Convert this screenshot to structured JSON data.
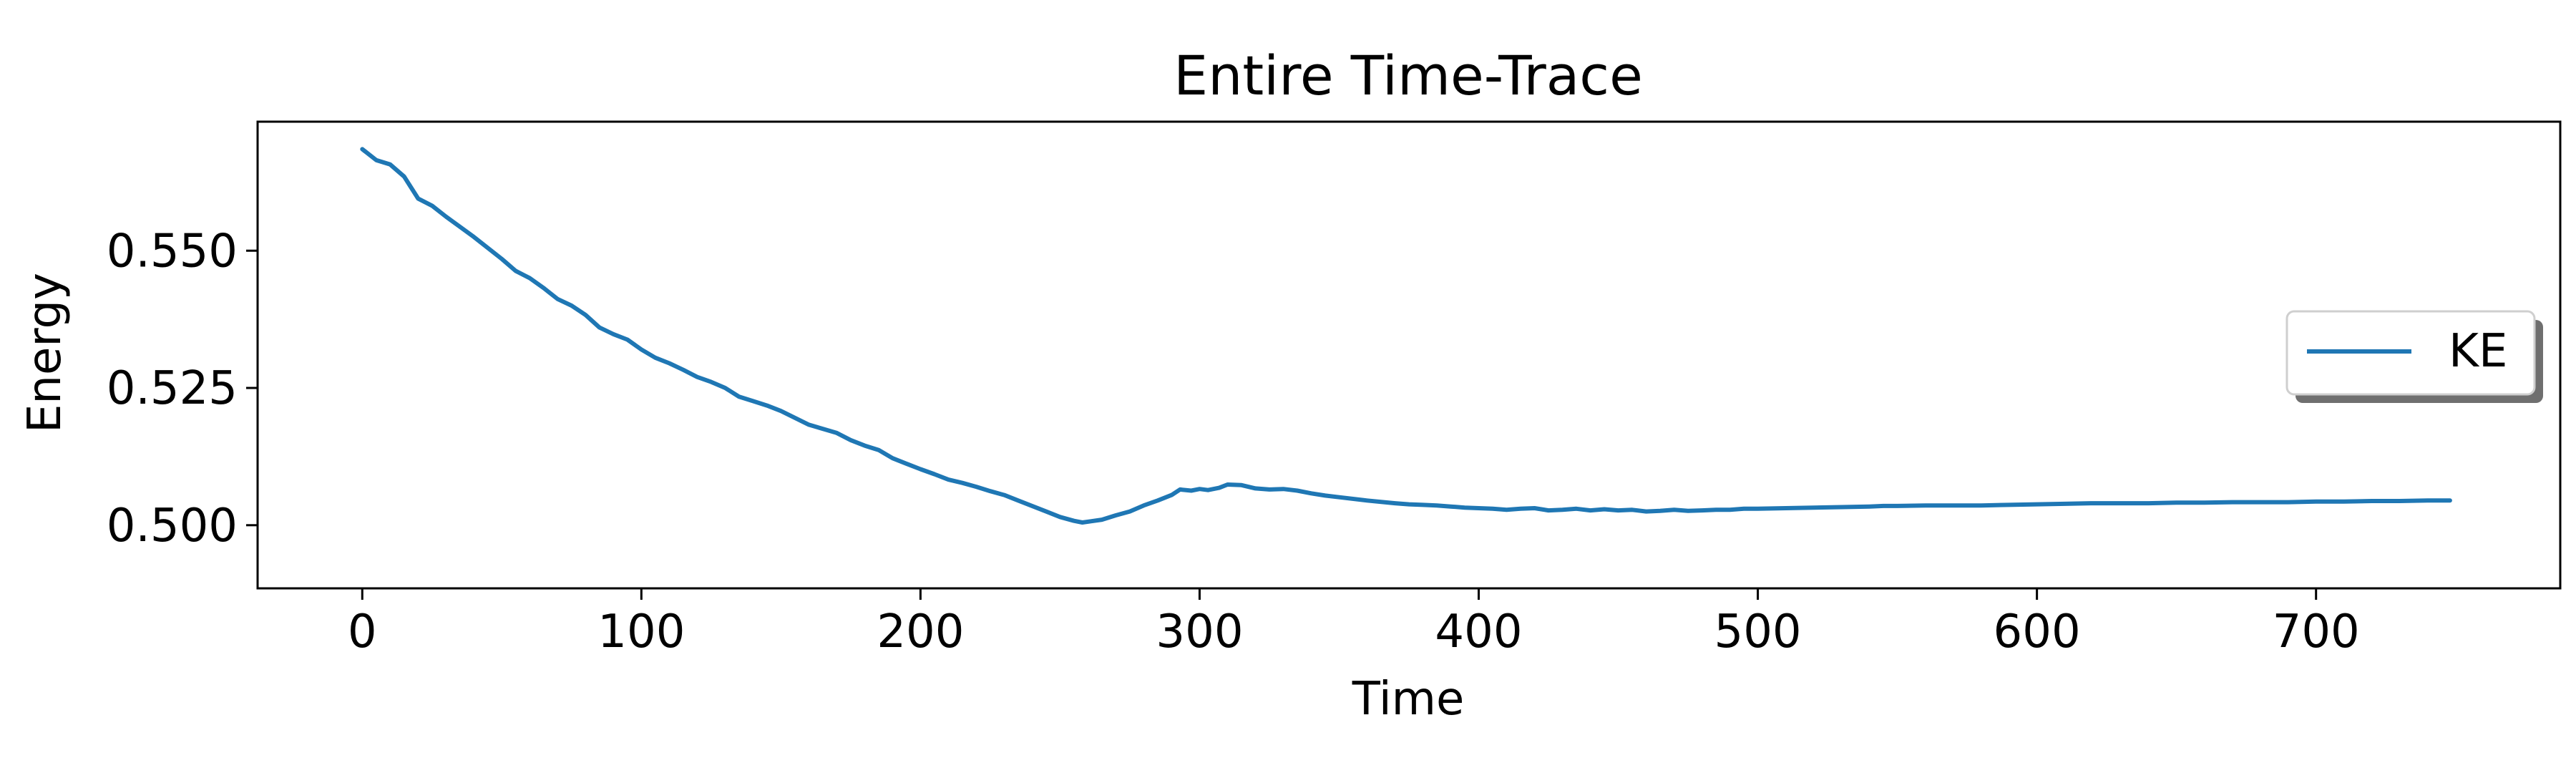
{
  "colors": {
    "series": "#1f77b4",
    "axis": "#000000",
    "background": "#ffffff"
  },
  "chart_data": {
    "type": "line",
    "title": "Entire Time-Trace",
    "xlabel": "Time",
    "ylabel": "Energy",
    "xlim": [
      -37.5,
      787.5
    ],
    "ylim": [
      0.4885,
      0.5735
    ],
    "xticks": [
      0,
      100,
      200,
      300,
      400,
      500,
      600,
      700
    ],
    "xtick_labels": [
      "0",
      "100",
      "200",
      "300",
      "400",
      "500",
      "600",
      "700"
    ],
    "yticks": [
      0.5,
      0.525,
      0.55
    ],
    "ytick_labels": [
      "0.500",
      "0.525",
      "0.550"
    ],
    "grid": false,
    "legend": {
      "location": "center-right",
      "entries": [
        "KE"
      ]
    },
    "series": [
      {
        "name": "KE",
        "x": [
          0,
          5,
          10,
          15,
          20,
          25,
          30,
          40,
          50,
          55,
          60,
          65,
          70,
          75,
          80,
          85,
          90,
          95,
          100,
          105,
          110,
          115,
          120,
          125,
          130,
          135,
          140,
          145,
          150,
          160,
          170,
          175,
          180,
          185,
          190,
          195,
          200,
          205,
          210,
          215,
          220,
          225,
          230,
          235,
          240,
          245,
          250,
          255,
          258,
          265,
          270,
          275,
          280,
          285,
          290,
          293,
          297,
          300,
          303,
          307,
          310,
          315,
          320,
          325,
          330,
          335,
          340,
          345,
          350,
          360,
          370,
          375,
          380,
          385,
          390,
          395,
          400,
          405,
          410,
          415,
          420,
          425,
          430,
          435,
          440,
          445,
          450,
          455,
          460,
          465,
          470,
          475,
          480,
          485,
          490,
          495,
          500,
          510,
          520,
          530,
          540,
          545,
          550,
          560,
          570,
          580,
          590,
          600,
          610,
          620,
          630,
          640,
          650,
          660,
          670,
          680,
          690,
          700,
          710,
          720,
          730,
          740,
          748
        ],
        "y": [
          0.5685,
          0.5665,
          0.5657,
          0.5635,
          0.5595,
          0.5582,
          0.5562,
          0.5525,
          0.5485,
          0.5463,
          0.545,
          0.5432,
          0.5412,
          0.54,
          0.5383,
          0.536,
          0.5348,
          0.5338,
          0.532,
          0.5305,
          0.5295,
          0.5283,
          0.527,
          0.5261,
          0.525,
          0.5234,
          0.5226,
          0.5218,
          0.5208,
          0.5183,
          0.5168,
          0.5155,
          0.5145,
          0.5137,
          0.5122,
          0.5112,
          0.5102,
          0.5093,
          0.5083,
          0.5077,
          0.507,
          0.5062,
          0.5055,
          0.5045,
          0.5035,
          0.5025,
          0.5015,
          0.5008,
          0.5005,
          0.501,
          0.5018,
          0.5025,
          0.5036,
          0.5045,
          0.5055,
          0.5065,
          0.5063,
          0.5066,
          0.5064,
          0.5068,
          0.5074,
          0.5073,
          0.5067,
          0.5065,
          0.5066,
          0.5063,
          0.5058,
          0.5054,
          0.5051,
          0.5045,
          0.504,
          0.5038,
          0.5037,
          0.5036,
          0.5034,
          0.5032,
          0.5031,
          0.503,
          0.5028,
          0.503,
          0.5031,
          0.5027,
          0.5028,
          0.503,
          0.5027,
          0.5029,
          0.5027,
          0.5028,
          0.5025,
          0.5026,
          0.5028,
          0.5026,
          0.5027,
          0.5028,
          0.5028,
          0.503,
          0.503,
          0.5031,
          0.5032,
          0.5033,
          0.5034,
          0.5035,
          0.5035,
          0.5036,
          0.5036,
          0.5036,
          0.5037,
          0.5038,
          0.5039,
          0.504,
          0.504,
          0.504,
          0.5041,
          0.5041,
          0.5042,
          0.5042,
          0.5042,
          0.5043,
          0.5043,
          0.5044,
          0.5044,
          0.5045,
          0.5045
        ]
      }
    ]
  }
}
